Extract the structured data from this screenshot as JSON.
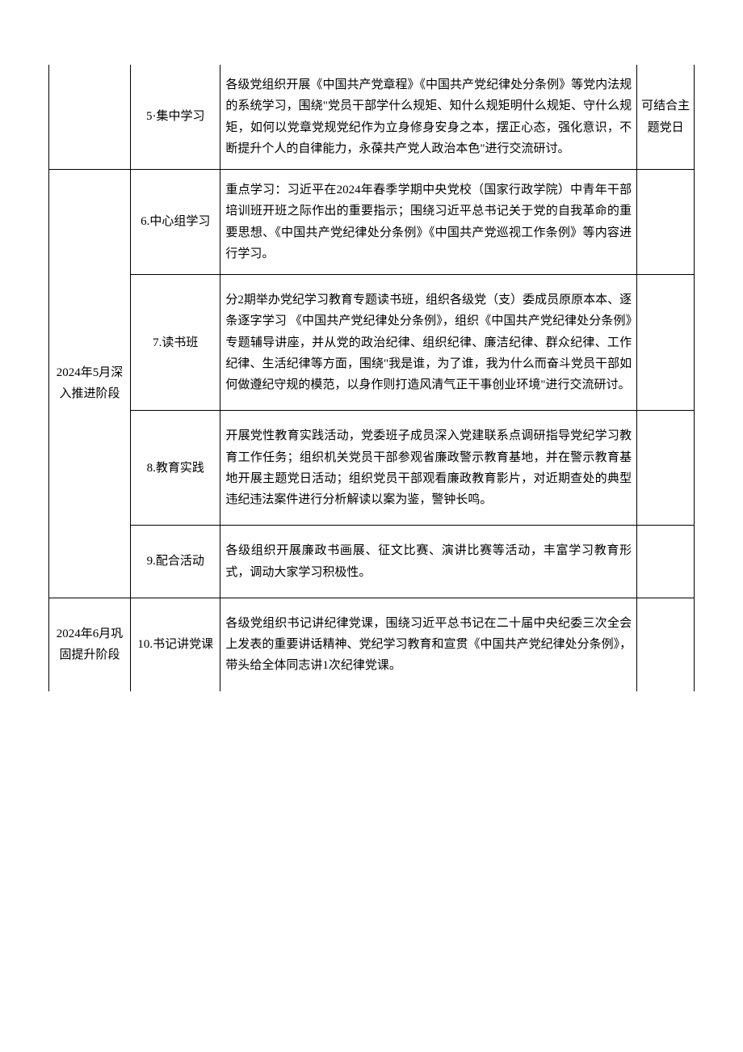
{
  "table": {
    "rows": [
      {
        "phase": "",
        "activity": "5·集中学习",
        "content": "各级党组织开展《中国共产党章程》《中国共产党纪律处分条例》等党内法规的系统学习，围绕\"党员干部学什么规矩、知什么规矩明什么规矩、守什么规矩，如何以党章党规党纪作为立身修身安身之本，摆正心态，强化意识，不断提升个人的自律能力，永葆共产党人政治本色\"进行交流研讨。",
        "note": "可结合主题党日"
      },
      {
        "phase": "2024年5月深入推进阶段",
        "activity": "6.中心组学习",
        "content": "重点学习：习近平在2024年春季学期中央党校（国家行政学院）中青年干部培训班开班之际作出的重要指示；围绕习近平总书记关于党的自我革命的重要思想、《中国共产党纪律处分条例》《中国共产党巡视工作条例》等内容进行学习。",
        "note": ""
      },
      {
        "activity": "7.读书班",
        "content": "分2期举办党纪学习教育专题读书班，组织各级党（支）委成员原原本本、逐条逐字学习\n《中国共产党纪律处分条例》，组织《中国共产党纪律处分条例》专题辅导讲座，并从党的政治纪律、组织纪律、廉洁纪律、群众纪律、工作纪律、生活纪律等方面，围绕\"我是谁，为了谁，我为什么而奋斗党员干部如何做遵纪守规的模范，以身作则打造风清气正干事创业环境\"进行交流研讨。",
        "note": ""
      },
      {
        "activity": "8.教育实践",
        "content": "开展党性教育实践活动，党委班子成员深入党建联系点调研指导党纪学习教育工作任务；组织机关党员干部参观省廉政警示教育基地，并在警示教育基地开展主题党日活动；组织党员干部观看廉政教育影片，对近期查处的典型违纪违法案件进行分析解读以案为鉴，警钟长鸣。",
        "note": ""
      },
      {
        "activity": "9.配合活动",
        "content": "各级组织开展廉政书画展、征文比赛、演讲比赛等活动，丰富学习教育形式，调动大家学习积极性。",
        "note": ""
      },
      {
        "phase": "2024年6月巩固提升阶段",
        "activity": "10.书记讲党课",
        "content": "各级党组织书记讲纪律党课，围绕习近平总书记在二十届中央纪委三次全会上发表的重要讲话精神、党纪学习教育和宣贯《中国共产党纪律处分条例》，带头给全体同志讲1次纪律党课。",
        "note": ""
      }
    ]
  }
}
